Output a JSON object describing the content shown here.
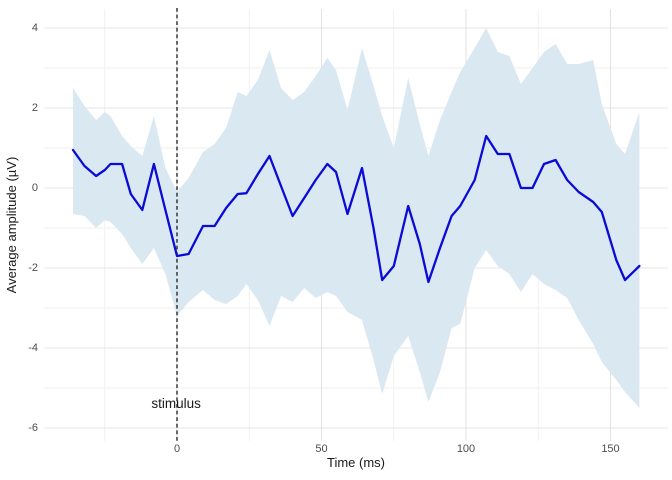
{
  "figure": {
    "background": "#ffffff",
    "panel": {
      "grid_major_color": "#e4e4e4",
      "grid_minor_color": "#efefef"
    }
  },
  "chart_data": {
    "type": "line",
    "title": "",
    "xlabel": "Time (ms)",
    "ylabel": "Average amplitude (µV)",
    "xlim": [
      -46,
      170
    ],
    "ylim": [
      -6.33,
      4.45
    ],
    "x_major_ticks": [
      0,
      50,
      100,
      150
    ],
    "x_minor_ticks": [
      -25,
      25,
      75,
      125
    ],
    "y_major_ticks": [
      4,
      2,
      0,
      -2,
      -4,
      -6
    ],
    "y_minor_ticks": [
      3,
      1,
      -1,
      -3,
      -5
    ],
    "grid": true,
    "legend": "none",
    "x": [
      -36,
      -32,
      -28,
      -25,
      -23,
      -19,
      -16,
      -12,
      -8,
      -4,
      0,
      4,
      9,
      13,
      17,
      21,
      24,
      28,
      32,
      36,
      40,
      44,
      48,
      52,
      55,
      59,
      64,
      68,
      71,
      75,
      80,
      84,
      87,
      91,
      95,
      98,
      103,
      107,
      111,
      115,
      119,
      123,
      127,
      131,
      135,
      139,
      144,
      147,
      152,
      155,
      160
    ],
    "series": [
      {
        "name": "confidence-band",
        "type": "ribbon",
        "fill": "#dae8f2",
        "upper": [
          2.5,
          2.05,
          1.7,
          1.9,
          1.8,
          1.3,
          1.05,
          0.8,
          1.8,
          0.5,
          -0.1,
          0.25,
          0.9,
          1.1,
          1.5,
          2.4,
          2.3,
          2.7,
          3.45,
          2.5,
          2.2,
          2.4,
          2.8,
          3.25,
          2.95,
          1.95,
          3.5,
          2.55,
          1.8,
          1.0,
          2.75,
          1.6,
          0.8,
          1.7,
          2.4,
          2.9,
          3.5,
          4.0,
          3.4,
          3.3,
          2.6,
          3.0,
          3.4,
          3.6,
          3.1,
          3.1,
          3.2,
          2.1,
          1.1,
          0.85,
          1.9
        ],
        "lower": [
          -0.65,
          -0.7,
          -1.0,
          -0.8,
          -0.85,
          -1.15,
          -1.5,
          -1.9,
          -1.5,
          -2.15,
          -3.2,
          -2.85,
          -2.55,
          -2.8,
          -2.9,
          -2.7,
          -2.4,
          -2.8,
          -3.45,
          -2.7,
          -2.85,
          -2.5,
          -2.75,
          -2.6,
          -2.7,
          -3.1,
          -3.3,
          -4.3,
          -5.15,
          -4.2,
          -3.7,
          -4.6,
          -5.35,
          -4.6,
          -3.5,
          -3.4,
          -2.0,
          -1.55,
          -1.95,
          -2.15,
          -2.6,
          -2.15,
          -2.4,
          -2.55,
          -2.75,
          -3.3,
          -3.9,
          -4.35,
          -4.8,
          -5.1,
          -5.5
        ]
      },
      {
        "name": "average-amplitude",
        "type": "line",
        "color": "#0b0bd6",
        "width": 2.3,
        "values": [
          0.95,
          0.55,
          0.3,
          0.45,
          0.6,
          0.6,
          -0.15,
          -0.55,
          0.6,
          -0.55,
          -1.7,
          -1.65,
          -0.95,
          -0.95,
          -0.5,
          -0.15,
          -0.13,
          0.35,
          0.8,
          0.05,
          -0.7,
          -0.25,
          0.2,
          0.6,
          0.4,
          -0.65,
          0.5,
          -1.0,
          -2.3,
          -1.95,
          -0.45,
          -1.4,
          -2.35,
          -1.5,
          -0.7,
          -0.45,
          0.2,
          1.3,
          0.85,
          0.85,
          0.0,
          0.0,
          0.6,
          0.7,
          0.2,
          -0.1,
          -0.35,
          -0.6,
          -1.8,
          -2.3,
          -1.95
        ]
      }
    ],
    "vline": {
      "x": 0,
      "style": "dashed",
      "color": "#1a1a1a"
    },
    "annotations": [
      {
        "text": "stimulus",
        "x": -0.3,
        "y": -5.4
      }
    ]
  }
}
